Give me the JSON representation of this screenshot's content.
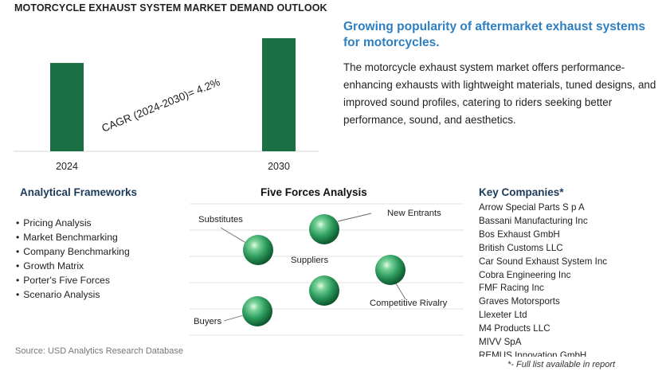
{
  "chart_data": {
    "type": "bar",
    "title": "MOTORCYCLE EXHAUST SYSTEM MARKET DEMAND OUTLOOK",
    "categories": [
      "2024",
      "2030"
    ],
    "values": [
      1.0,
      1.28
    ],
    "annotation": "CAGR (2024-2030)=   4.2%",
    "bar_color": "#1a7042"
  },
  "headline": "Growing popularity of aftermarket exhaust systems for motorcycles.",
  "description": "The motorcycle exhaust system market offers performance-enhancing exhausts with lightweight materials, tuned designs, and improved sound profiles, catering to riders seeking better performance, sound, and aesthetics.",
  "frameworks": {
    "title": "Analytical Frameworks",
    "items": [
      "Pricing Analysis",
      "Market Benchmarking",
      "Company Benchmarking",
      "Growth Matrix",
      "Porter's Five Forces",
      "Scenario Analysis"
    ]
  },
  "five_forces": {
    "title": "Five Forces Analysis",
    "labels": {
      "substitutes": "Substitutes",
      "new_entrants": "New Entrants",
      "suppliers": "Suppliers",
      "competitive_rivalry": "Competitive Rivalry",
      "buyers": "Buyers"
    }
  },
  "companies": {
    "title": "Key Companies*",
    "items": [
      "Arrow Special Parts S p A",
      "Bassani Manufacturing Inc",
      "Bos Exhaust GmbH",
      "British Customs LLC",
      "Car Sound Exhaust System Inc",
      "Cobra Engineering Inc",
      "FMF Racing Inc",
      "Graves Motorsports",
      "Llexeter Ltd",
      "M4 Products LLC",
      "MIVV SpA",
      "REMUS Innovation GmbH"
    ],
    "footnote": "*- Full list available in report"
  },
  "source": "Source: USD Analytics Research Database"
}
